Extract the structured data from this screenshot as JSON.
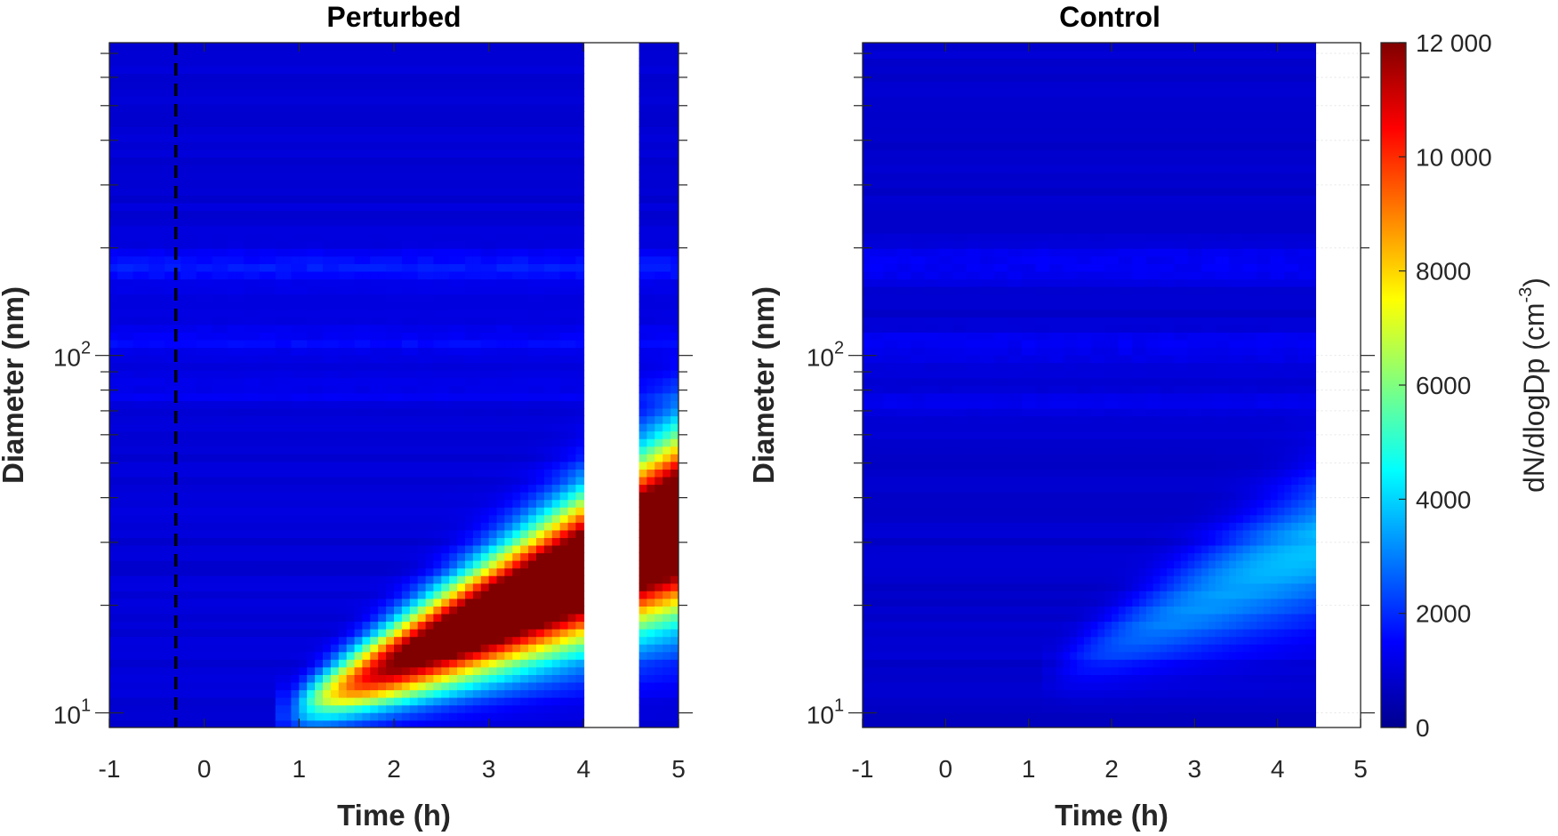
{
  "chart_data": [
    {
      "type": "heatmap",
      "title": "Perturbed",
      "xlabel": "Time (h)",
      "ylabel": "Diameter (nm)",
      "xlim": [
        -1,
        5
      ],
      "ylim": [
        9.1,
        750
      ],
      "yscale": "log",
      "x_ticks": [
        "-1",
        "0",
        "1",
        "2",
        "3",
        "4",
        "5"
      ],
      "y_ticks": [
        {
          "base": "10",
          "exp": "1",
          "value": 10
        },
        {
          "base": "10",
          "exp": "2",
          "value": 100
        }
      ],
      "colormap": "jet",
      "clim": [
        0,
        12000
      ],
      "background_conc": 1000,
      "data_gap": [
        4.02,
        4.57
      ],
      "event_marker": {
        "x": -0.3,
        "style": "dashed",
        "color": "#000000"
      },
      "bands": [
        {
          "d": 180,
          "conc": 1700
        },
        {
          "d": 110,
          "conc": 1500
        },
        {
          "d": 80,
          "conc": 1300
        }
      ],
      "growth_mode": {
        "start_time": 0.9,
        "start_diameter": 9.5,
        "growth_rate_log10_per_h": 0.113,
        "peak_conc": 16000,
        "growth_time_constant_h": 1.0
      }
    },
    {
      "type": "heatmap",
      "title": "Control",
      "xlabel": "Time (h)",
      "ylabel": "Diameter (nm)",
      "xlim": [
        -1,
        5
      ],
      "ylim": [
        9.1,
        750
      ],
      "yscale": "log",
      "x_ticks": [
        "-1",
        "0",
        "1",
        "2",
        "3",
        "4",
        "5"
      ],
      "y_ticks": [
        {
          "base": "10",
          "exp": "1",
          "value": 10
        },
        {
          "base": "10",
          "exp": "2",
          "value": 100
        }
      ],
      "colormap": "jet",
      "clim": [
        0,
        12000
      ],
      "background_conc": 900,
      "data_end": 4.47,
      "bands": [
        {
          "d": 180,
          "conc": 1500
        },
        {
          "d": 105,
          "conc": 1400
        },
        {
          "d": 75,
          "conc": 1200
        }
      ],
      "growth_mode": {
        "start_time": 1.3,
        "start_diameter": 12.5,
        "growth_rate_log10_per_h": 0.095,
        "peak_conc": 3000,
        "growth_time_constant_h": 1.2
      }
    }
  ],
  "colorbar": {
    "label": "dN/dlogDp (cm",
    "label_sup": "-3",
    "label_close": ")",
    "ticks": [
      "0",
      "2000",
      "4000",
      "6000",
      "8000",
      "10 000",
      "12 000"
    ],
    "tick_values": [
      0,
      2000,
      4000,
      6000,
      8000,
      10000,
      12000
    ]
  }
}
